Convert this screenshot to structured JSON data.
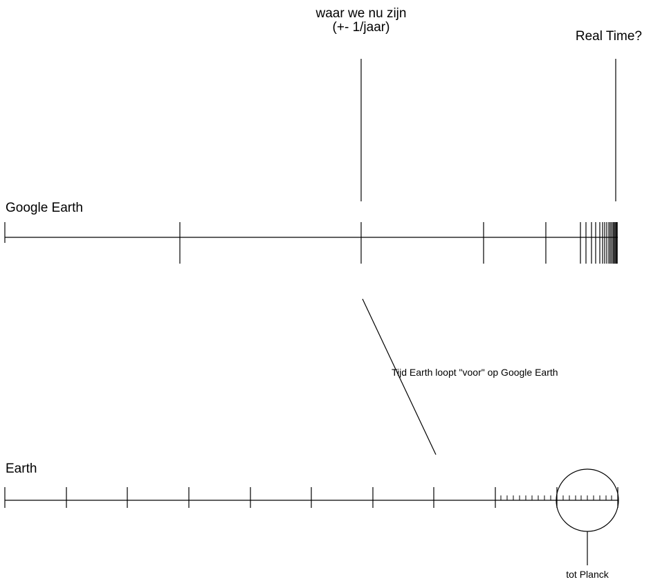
{
  "labels": {
    "current_position": [
      "waar we nu zijn",
      "(+- 1/jaar)"
    ],
    "real_time": "Real Time?",
    "google_earth": "Google Earth",
    "earth": "Earth",
    "offset_annotation": "Tijd Earth loopt \"voor\" op Google Earth",
    "planck": "tot Planck"
  },
  "colors": {
    "stroke": "#000000",
    "background": "#ffffff"
  }
}
